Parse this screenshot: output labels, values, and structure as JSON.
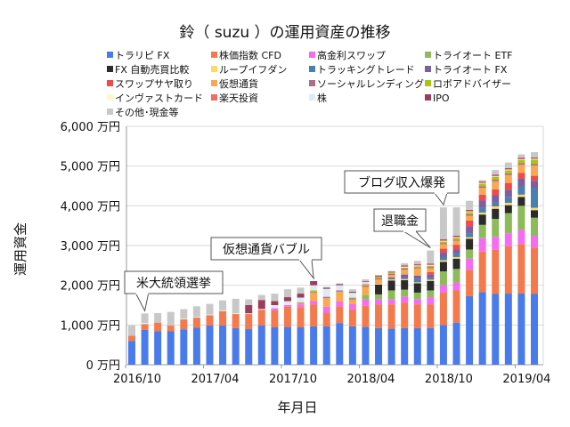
{
  "chart_data": {
    "type": "bar",
    "stacked": true,
    "title": "鈴（ suzu ）の運用資産の推移",
    "xlabel": "年月日",
    "ylabel": "運用資金",
    "ylim": [
      0,
      6000
    ],
    "y_unit": "万円",
    "yticks": [
      "0 万円",
      "1,000 万円",
      "2,000 万円",
      "3,000 万円",
      "4,000 万円",
      "5,000 万円",
      "6,000 万円"
    ],
    "xticks": [
      "2016/10",
      "2017/04",
      "2017/10",
      "2018/04",
      "2018/10",
      "2019/04"
    ],
    "grid": true,
    "legend_position": "top",
    "categories": [
      "2016/10",
      "2016/11",
      "2016/12",
      "2017/01",
      "2017/02",
      "2017/03",
      "2017/04",
      "2017/05",
      "2017/06",
      "2017/07",
      "2017/08",
      "2017/09",
      "2017/10",
      "2017/11",
      "2017/12",
      "2018/01",
      "2018/02",
      "2018/03",
      "2018/04",
      "2018/05",
      "2018/06",
      "2018/07",
      "2018/08",
      "2018/09",
      "2018/10",
      "2018/11",
      "2018/12",
      "2019/01",
      "2019/02",
      "2019/03",
      "2019/04",
      "2019/05"
    ],
    "series": [
      {
        "name": "トラリピ FX",
        "color": "#4a7bea",
        "values": [
          600,
          875,
          840,
          840,
          890,
          930,
          985,
          985,
          920,
          895,
          985,
          940,
          950,
          940,
          965,
          965,
          1050,
          965,
          950,
          920,
          905,
          920,
          920,
          925,
          1000,
          1060,
          1725,
          1830,
          1780,
          1790,
          1790,
          1780
        ]
      },
      {
        "name": "株価指数 CFD",
        "color": "#f47a4d",
        "values": [
          130,
          145,
          220,
          145,
          250,
          255,
          260,
          365,
          355,
          380,
          400,
          430,
          510,
          510,
          555,
          345,
          420,
          425,
          530,
          600,
          615,
          635,
          600,
          595,
          815,
          810,
          665,
          1020,
          1110,
          1190,
          1250,
          1170
        ]
      },
      {
        "name": "高金利スワップ",
        "color": "#f66cf0",
        "values": [
          0,
          0,
          0,
          0,
          0,
          0,
          0,
          0,
          0,
          0,
          0,
          50,
          40,
          70,
          80,
          150,
          120,
          140,
          160,
          130,
          120,
          165,
          130,
          180,
          185,
          200,
          280,
          335,
          330,
          330,
          350,
          295
        ]
      },
      {
        "name": "トライオート ETF",
        "color": "#8dbb5a",
        "values": [
          0,
          0,
          0,
          0,
          0,
          0,
          0,
          0,
          0,
          0,
          0,
          0,
          0,
          0,
          0,
          0,
          0,
          0,
          115,
          120,
          230,
          170,
          165,
          170,
          350,
          340,
          230,
          335,
          450,
          505,
          610,
          455
        ]
      },
      {
        "name": "FX 自動売買比較",
        "color": "#2b2b2b",
        "values": [
          0,
          0,
          0,
          0,
          0,
          0,
          0,
          0,
          0,
          0,
          0,
          0,
          0,
          0,
          0,
          0,
          0,
          0,
          0,
          245,
          250,
          240,
          235,
          240,
          240,
          260,
          270,
          260,
          255,
          200,
          220,
          190
        ]
      },
      {
        "name": "ループイフダン",
        "color": "#fdd966",
        "values": [
          0,
          0,
          0,
          0,
          0,
          0,
          0,
          0,
          0,
          0,
          0,
          0,
          0,
          0,
          0,
          0,
          0,
          0,
          0,
          20,
          25,
          25,
          25,
          30,
          40,
          40,
          40,
          50,
          60,
          60,
          60,
          60
        ]
      },
      {
        "name": "トラッキングトレード",
        "color": "#4a7fb0",
        "values": [
          0,
          0,
          0,
          0,
          0,
          0,
          0,
          0,
          0,
          0,
          0,
          0,
          0,
          0,
          0,
          0,
          0,
          0,
          0,
          0,
          20,
          25,
          80,
          40,
          90,
          80,
          100,
          120,
          100,
          150,
          220,
          495
        ]
      },
      {
        "name": "トライオート FX",
        "color": "#7b5fa0",
        "values": [
          0,
          0,
          0,
          0,
          0,
          0,
          0,
          0,
          0,
          0,
          0,
          0,
          0,
          0,
          0,
          0,
          0,
          0,
          0,
          0,
          30,
          90,
          90,
          90,
          100,
          110,
          170,
          180,
          180,
          180,
          180,
          185
        ]
      },
      {
        "name": "スワップサヤ取り",
        "color": "#f04a4a",
        "values": [
          0,
          0,
          0,
          0,
          0,
          0,
          0,
          0,
          0,
          0,
          0,
          0,
          0,
          0,
          0,
          0,
          0,
          0,
          0,
          0,
          0,
          0,
          0,
          60,
          100,
          120,
          150,
          150,
          150,
          170,
          150,
          125
        ]
      },
      {
        "name": "仮想通貨",
        "color": "#f8a850",
        "values": [
          0,
          0,
          0,
          0,
          0,
          0,
          0,
          0,
          0,
          0,
          0,
          0,
          0,
          30,
          220,
          220,
          250,
          110,
          205,
          110,
          60,
          120,
          180,
          100,
          110,
          100,
          120,
          170,
          200,
          200,
          200,
          260
        ]
      },
      {
        "name": "ソーシャルレンディング",
        "color": "#b06a8a",
        "values": [
          0,
          0,
          0,
          0,
          0,
          0,
          0,
          0,
          0,
          0,
          0,
          0,
          0,
          20,
          20,
          30,
          30,
          30,
          30,
          30,
          30,
          30,
          30,
          30,
          30,
          30,
          40,
          40,
          40,
          40,
          40,
          40
        ]
      },
      {
        "name": "ロボアドバイザー",
        "color": "#a8c60f",
        "values": [
          0,
          0,
          0,
          0,
          0,
          0,
          0,
          0,
          0,
          0,
          0,
          0,
          0,
          0,
          30,
          0,
          0,
          20,
          20,
          30,
          25,
          25,
          25,
          30,
          40,
          40,
          50,
          70,
          70,
          80,
          80,
          110
        ]
      },
      {
        "name": "インヴァストカード",
        "color": "#fff6cc",
        "values": [
          0,
          0,
          0,
          0,
          0,
          0,
          0,
          0,
          0,
          0,
          0,
          0,
          0,
          0,
          0,
          0,
          0,
          0,
          0,
          0,
          0,
          15,
          15,
          15,
          15,
          15,
          15,
          15,
          15,
          15,
          15,
          15
        ]
      },
      {
        "name": "楽天投資",
        "color": "#f26a6a",
        "values": [
          0,
          0,
          0,
          0,
          0,
          0,
          0,
          0,
          0,
          0,
          0,
          0,
          0,
          0,
          0,
          0,
          0,
          0,
          20,
          20,
          15,
          20,
          20,
          20,
          20,
          20,
          20,
          20,
          20,
          20,
          20,
          20
        ]
      },
      {
        "name": "株",
        "color": "#dcebf6",
        "values": [
          0,
          30,
          0,
          0,
          20,
          20,
          20,
          20,
          20,
          20,
          20,
          80,
          100,
          120,
          130,
          200,
          130,
          120,
          50,
          0,
          0,
          0,
          0,
          0,
          0,
          0,
          0,
          0,
          0,
          0,
          0,
          0
        ]
      },
      {
        "name": "IPO",
        "color": "#9c3d5a",
        "values": [
          0,
          0,
          0,
          0,
          0,
          0,
          0,
          0,
          0,
          205,
          225,
          100,
          100,
          100,
          105,
          30,
          30,
          30,
          20,
          20,
          15,
          20,
          20,
          20,
          20,
          20,
          20,
          20,
          20,
          20,
          20,
          20
        ]
      },
      {
        "name": "その他･現金等",
        "color": "#c8c8c8",
        "values": [
          260,
          240,
          240,
          345,
          240,
          265,
          265,
          250,
          365,
          145,
          125,
          190,
          200,
          150,
          0,
          20,
          20,
          60,
          50,
          15,
          20,
          55,
          80,
          330,
          805,
          715,
          230,
          30,
          120,
          140,
          90,
          130
        ]
      }
    ],
    "annotations": [
      {
        "text": "米大統領選挙",
        "category": "2016/11"
      },
      {
        "text": "仮想通貨バブル",
        "category": "2017/12"
      },
      {
        "text": "退職金",
        "category": "2018/09"
      },
      {
        "text": "ブログ収入爆発",
        "category": "2018/10"
      }
    ]
  }
}
